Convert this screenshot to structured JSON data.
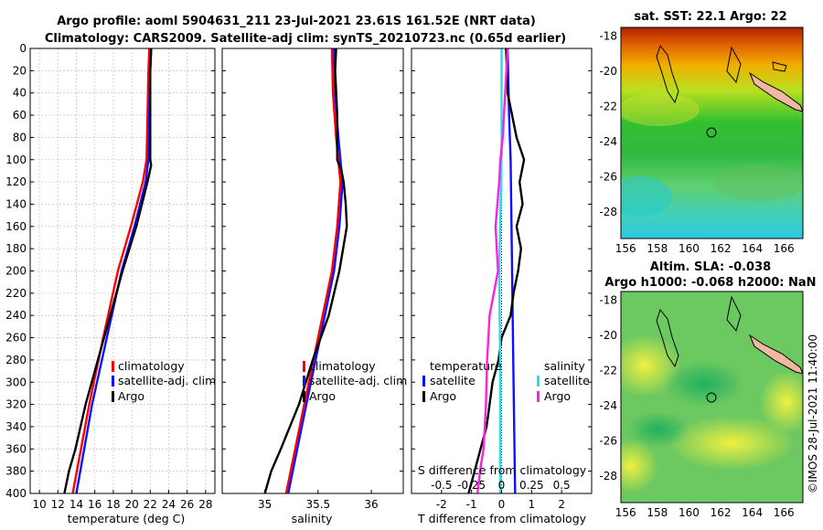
{
  "header": {
    "title_line1": "Argo profile: aoml 5904631_211 23-Jul-2021 23.61S 161.52E (NRT data)",
    "title_line2": "Climatology: CARS2009. Satellite-adj clim: synTS_20210723.nc (0.65d earlier)"
  },
  "colors": {
    "climatology": "#ff0000",
    "satellite": "#1010ff",
    "argo": "#000000",
    "sal_satellite": "#20e0f0",
    "sal_argo": "#ff20e0"
  },
  "chart_data": [
    {
      "name": "temperature",
      "type": "line",
      "xlabel": "temperature (deg C)",
      "ylabel": "",
      "xlim": [
        9,
        29
      ],
      "ylim": [
        400,
        0
      ],
      "xticks": [
        10,
        12,
        14,
        16,
        18,
        20,
        22,
        24,
        26,
        28
      ],
      "yticks": [
        0,
        20,
        40,
        60,
        80,
        100,
        120,
        140,
        160,
        180,
        200,
        220,
        240,
        260,
        280,
        300,
        320,
        340,
        360,
        380,
        400
      ],
      "grid": true,
      "legend": [
        "climatology",
        "satellite-adj. clim",
        "Argo"
      ],
      "series": [
        {
          "name": "climatology",
          "depth": [
            0,
            20,
            60,
            100,
            120,
            160,
            200,
            260,
            320,
            400
          ],
          "values": [
            21.9,
            21.8,
            21.7,
            21.6,
            21.2,
            19.9,
            18.5,
            16.9,
            15.4,
            13.6
          ]
        },
        {
          "name": "satellite-adj. clim",
          "depth": [
            0,
            20,
            60,
            100,
            120,
            160,
            200,
            260,
            320,
            400
          ],
          "values": [
            22.1,
            22.0,
            21.9,
            21.8,
            21.5,
            20.3,
            18.9,
            17.3,
            15.7,
            14.0
          ]
        },
        {
          "name": "Argo",
          "depth": [
            0,
            20,
            60,
            100,
            105,
            120,
            160,
            200,
            260,
            320,
            360,
            380,
            400
          ],
          "values": [
            22.1,
            22.0,
            22.0,
            22.0,
            22.1,
            21.7,
            20.5,
            19.0,
            17.0,
            15.0,
            13.9,
            13.2,
            12.7
          ]
        }
      ]
    },
    {
      "name": "salinity",
      "type": "line",
      "xlabel": "salinity",
      "xlim": [
        34.6,
        36.3
      ],
      "ylim": [
        400,
        0
      ],
      "xticks": [
        35,
        35.5,
        36
      ],
      "grid": false,
      "legend": [
        "climatology",
        "satellite-adj. clim",
        "Argo"
      ],
      "series": [
        {
          "name": "climatology",
          "depth": [
            0,
            40,
            80,
            120,
            160,
            200,
            260,
            320,
            400
          ],
          "values": [
            35.63,
            35.64,
            35.67,
            35.71,
            35.68,
            35.63,
            35.5,
            35.37,
            35.2
          ]
        },
        {
          "name": "satellite-adj. clim",
          "depth": [
            0,
            40,
            80,
            120,
            160,
            200,
            260,
            320,
            400
          ],
          "values": [
            35.65,
            35.66,
            35.69,
            35.73,
            35.7,
            35.65,
            35.52,
            35.39,
            35.22
          ]
        },
        {
          "name": "Argo",
          "depth": [
            0,
            20,
            60,
            100,
            110,
            120,
            140,
            160,
            200,
            240,
            280,
            320,
            360,
            380,
            400
          ],
          "values": [
            35.67,
            35.66,
            35.68,
            35.68,
            35.72,
            35.74,
            35.76,
            35.77,
            35.7,
            35.6,
            35.45,
            35.32,
            35.15,
            35.06,
            35.0
          ]
        }
      ]
    },
    {
      "name": "difference",
      "type": "line",
      "xlabel": "T difference from climatology",
      "xlabel_top": "S difference from climatology",
      "xlim": [
        -3,
        3
      ],
      "ylim": [
        400,
        0
      ],
      "xticks": [
        -2,
        -1,
        0,
        1,
        2
      ],
      "xticks_top": [
        "-0.5",
        "-0.25",
        "0",
        "0.25",
        "0.5"
      ],
      "legend_temperature": {
        "title": "temperature",
        "items": [
          "satellite",
          "Argo"
        ]
      },
      "legend_salinity": {
        "title": "salinity",
        "items": [
          "satellite",
          "Argo"
        ]
      },
      "series": [
        {
          "name": "T satellite",
          "depth": [
            0,
            60,
            100,
            200,
            300,
            400
          ],
          "values": [
            0.2,
            0.25,
            0.3,
            0.35,
            0.4,
            0.45
          ]
        },
        {
          "name": "T Argo",
          "depth": [
            0,
            40,
            80,
            100,
            120,
            140,
            160,
            180,
            200,
            220,
            240,
            260,
            280,
            300,
            320,
            340,
            360,
            380,
            400
          ],
          "values": [
            0.15,
            0.2,
            0.5,
            0.75,
            0.6,
            0.7,
            0.5,
            0.65,
            0.55,
            0.4,
            0.3,
            0.0,
            -0.1,
            -0.3,
            -0.4,
            -0.5,
            -0.7,
            -0.9,
            -1.1
          ]
        },
        {
          "name": "S satellite",
          "depth": [
            0,
            100,
            200,
            300,
            400
          ],
          "values": [
            0.0,
            0.0,
            -0.02,
            -0.01,
            -0.01
          ]
        },
        {
          "name": "S Argo",
          "depth": [
            0,
            40,
            80,
            100,
            120,
            160,
            200,
            240,
            280,
            320,
            360,
            380,
            400
          ],
          "values": [
            0.05,
            0.03,
            0.01,
            -0.01,
            -0.02,
            -0.05,
            -0.03,
            -0.1,
            -0.12,
            -0.13,
            -0.15,
            -0.18,
            -0.2
          ]
        }
      ]
    },
    {
      "name": "sst_map",
      "type": "heatmap",
      "title": "sat. SST: 22.1 Argo: 22",
      "xticks": [
        156,
        158,
        160,
        162,
        164,
        166
      ],
      "yticks": [
        -18,
        -20,
        -22,
        -24,
        -26,
        -28
      ],
      "xlim": [
        155.7,
        167.2
      ],
      "ylim": [
        -29.5,
        -17.5
      ]
    },
    {
      "name": "sla_map",
      "type": "heatmap",
      "title_line1": "Altim. SLA: -0.038",
      "title_line2": "Argo h1000: -0.068 h2000: NaN",
      "xticks": [
        156,
        158,
        160,
        162,
        164,
        166
      ],
      "yticks": [
        -18,
        -20,
        -22,
        -24,
        -26,
        -28
      ],
      "xlim": [
        155.7,
        167.2
      ],
      "ylim": [
        -29.5,
        -17.5
      ]
    }
  ],
  "footer": {
    "credit": "©IMOS 28-Jul-2021 11:40:00"
  }
}
